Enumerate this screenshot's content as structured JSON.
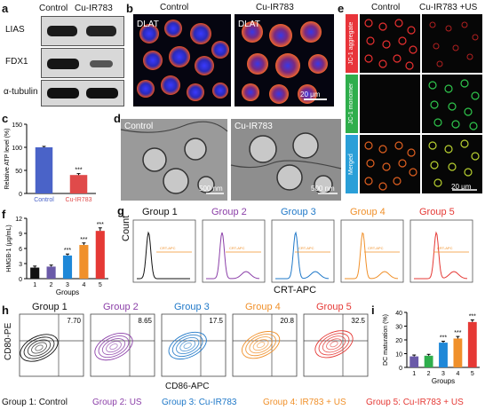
{
  "panels": {
    "a": {
      "letter": "a",
      "cols": [
        "Control",
        "Cu-IR783"
      ],
      "rows": [
        "LIAS",
        "FDX1",
        "α-tubulin"
      ]
    },
    "b": {
      "letter": "b",
      "cols": [
        "Control",
        "Cu-IR783"
      ],
      "stain": "DLAT",
      "scale": "20 μm"
    },
    "c": {
      "letter": "c"
    },
    "d": {
      "letter": "d",
      "labels": [
        "Control",
        "Cu-IR783"
      ],
      "scale": "500 nm"
    },
    "e": {
      "letter": "e",
      "cols": [
        "Control",
        "Cu-IR783 +US"
      ],
      "rows": [
        "JC-1 aggregate",
        "JC-1 monomer",
        "Merged"
      ],
      "row_colors": [
        "#e8343a",
        "#2fae4c",
        "#2a9fd8"
      ],
      "scale": "20 μm"
    },
    "f": {
      "letter": "f"
    },
    "g": {
      "letter": "g",
      "groups": [
        "Group 1",
        "Group 2",
        "Group 3",
        "Group 4",
        "Group 5"
      ],
      "group_colors": [
        "#111111",
        "#8b3fa8",
        "#1f78c8",
        "#f0902a",
        "#e53935"
      ],
      "gate_label": "CRT-APC",
      "xlabel": "CRT-APC",
      "ylabel": "Count"
    },
    "h": {
      "letter": "h",
      "groups": [
        "Group 1",
        "Group 2",
        "Group 3",
        "Group 4",
        "Group 5"
      ],
      "group_colors": [
        "#111111",
        "#8b3fa8",
        "#1f78c8",
        "#f0902a",
        "#e53935"
      ],
      "quadrant_values": [
        "7.70",
        "8.65",
        "17.5",
        "20.8",
        "32.5"
      ],
      "xlabel": "CD86-APC",
      "ylabel": "CD80-PE"
    },
    "i": {
      "letter": "i"
    }
  },
  "legend": {
    "items": [
      {
        "label": "Group 1: Control",
        "color": "#111111"
      },
      {
        "label": "Group 2: US",
        "color": "#8b3fa8"
      },
      {
        "label": "Group 3: Cu-IR783",
        "color": "#1f78c8"
      },
      {
        "label": "Group 4: IR783 + US",
        "color": "#f0902a"
      },
      {
        "label": "Group 5: Cu-IR783 + US",
        "color": "#e53935"
      }
    ]
  },
  "chart_data": [
    {
      "id": "c",
      "type": "bar",
      "categories": [
        "Control",
        "Cu-IR783"
      ],
      "values": [
        100,
        40
      ],
      "errors": [
        2,
        3
      ],
      "colors": [
        "#4a63c8",
        "#e04a4a"
      ],
      "ylabel": "Relative ATP level (%)",
      "ylim": [
        0,
        150
      ],
      "yticks": [
        "0",
        "50",
        "100",
        "150"
      ],
      "annotations": [
        "",
        "***"
      ]
    },
    {
      "id": "f",
      "type": "bar",
      "categories": [
        "1",
        "2",
        "3",
        "4",
        "5"
      ],
      "values": [
        2.2,
        2.4,
        4.6,
        6.7,
        9.5
      ],
      "errors": [
        0.3,
        0.3,
        0.3,
        0.4,
        0.6
      ],
      "colors": [
        "#111111",
        "#6a5aa8",
        "#1f88d8",
        "#f0902a",
        "#e53935"
      ],
      "ylabel": "HMGB-1 (μg/mL)",
      "xlabel": "Groups",
      "ylim": [
        0,
        12
      ],
      "yticks": [
        "0",
        "3",
        "6",
        "9",
        "12"
      ],
      "annotations": [
        "",
        "",
        "***",
        "***",
        "***"
      ]
    },
    {
      "id": "i",
      "type": "bar",
      "categories": [
        "1",
        "2",
        "3",
        "4",
        "5"
      ],
      "values": [
        8,
        8.5,
        18,
        21,
        33
      ],
      "errors": [
        1,
        1,
        1,
        1.5,
        1.5
      ],
      "colors": [
        "#6a5aa8",
        "#2fae4c",
        "#1f88d8",
        "#f0902a",
        "#e53935"
      ],
      "ylabel": "DC maturation (%)",
      "xlabel": "Groups",
      "ylim": [
        0,
        40
      ],
      "yticks": [
        "0",
        "10",
        "20",
        "30",
        "40"
      ],
      "annotations": [
        "",
        "",
        "***",
        "***",
        "***"
      ]
    }
  ]
}
